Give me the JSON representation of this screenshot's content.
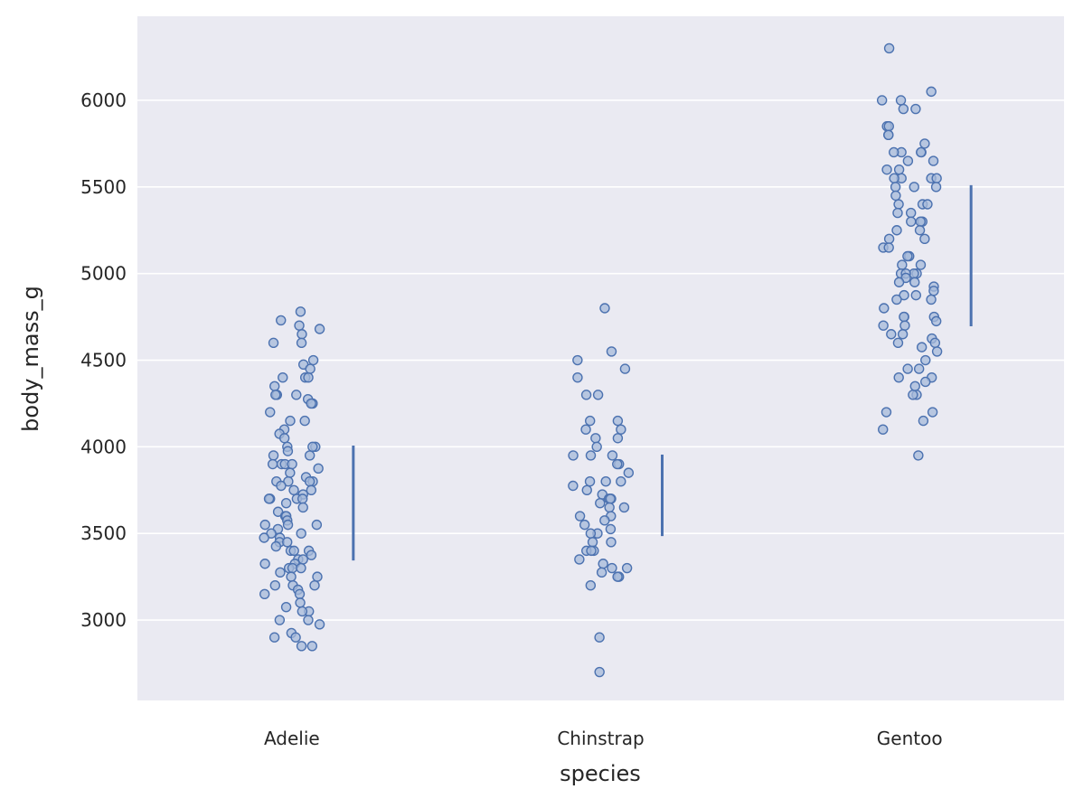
{
  "chart_data": {
    "type": "scatter",
    "subtype": "strip-with-range",
    "xlabel": "species",
    "ylabel": "body_mass_g",
    "categories": [
      "Adelie",
      "Chinstrap",
      "Gentoo"
    ],
    "ylim": [
      2536,
      6485
    ],
    "yticks": [
      3000,
      3500,
      4000,
      4500,
      5000,
      5500,
      6000
    ],
    "grid": true,
    "colors": {
      "background": "#eaeaf2",
      "grid": "#ffffff",
      "point_edge": "#4c72b0",
      "point_fill": "#a6b9d9",
      "range": "#4c72b0"
    },
    "series": [
      {
        "name": "Adelie",
        "values": [
          4780,
          4730,
          4700,
          4680,
          4650,
          4600,
          4600,
          4500,
          4475,
          4450,
          4400,
          4400,
          4400,
          4350,
          4300,
          4300,
          4300,
          4275,
          4250,
          4250,
          4200,
          4150,
          4150,
          4100,
          4075,
          4050,
          4000,
          4000,
          4000,
          3975,
          3950,
          3950,
          3900,
          3900,
          3900,
          3900,
          3875,
          3850,
          3825,
          3800,
          3800,
          3800,
          3800,
          3775,
          3750,
          3750,
          3725,
          3700,
          3700,
          3700,
          3700,
          3675,
          3650,
          3625,
          3600,
          3600,
          3575,
          3550,
          3550,
          3550,
          3525,
          3500,
          3500,
          3475,
          3475,
          3450,
          3450,
          3425,
          3400,
          3400,
          3400,
          3375,
          3350,
          3350,
          3325,
          3325,
          3300,
          3300,
          3300,
          3275,
          3250,
          3250,
          3200,
          3200,
          3200,
          3175,
          3150,
          3150,
          3100,
          3075,
          3050,
          3050,
          3000,
          3000,
          2975,
          2925,
          2900,
          2900,
          2850,
          2850
        ],
        "range": [
          3344,
          4007
        ]
      },
      {
        "name": "Chinstrap",
        "values": [
          4800,
          4550,
          4500,
          4450,
          4400,
          4300,
          4300,
          4150,
          4150,
          4100,
          4100,
          4050,
          4050,
          4000,
          3950,
          3950,
          3950,
          3900,
          3900,
          3850,
          3800,
          3800,
          3800,
          3775,
          3750,
          3725,
          3700,
          3700,
          3700,
          3675,
          3650,
          3650,
          3600,
          3600,
          3575,
          3550,
          3525,
          3500,
          3500,
          3450,
          3450,
          3400,
          3400,
          3400,
          3350,
          3325,
          3300,
          3300,
          3275,
          3250,
          3250,
          3200,
          2900,
          2700
        ],
        "range": [
          3485,
          3955
        ]
      },
      {
        "name": "Gentoo",
        "values": [
          6300,
          6050,
          6000,
          6000,
          5950,
          5950,
          5850,
          5850,
          5800,
          5800,
          5750,
          5700,
          5700,
          5700,
          5700,
          5650,
          5650,
          5600,
          5600,
          5550,
          5550,
          5550,
          5550,
          5500,
          5500,
          5500,
          5450,
          5400,
          5400,
          5400,
          5350,
          5350,
          5300,
          5300,
          5300,
          5250,
          5250,
          5200,
          5200,
          5150,
          5150,
          5100,
          5100,
          5050,
          5050,
          5000,
          5000,
          5000,
          5000,
          4975,
          4950,
          4950,
          4925,
          4900,
          4875,
          4875,
          4850,
          4850,
          4800,
          4750,
          4750,
          4750,
          4725,
          4700,
          4700,
          4650,
          4650,
          4625,
          4600,
          4600,
          4575,
          4550,
          4500,
          4450,
          4450,
          4400,
          4400,
          4375,
          4350,
          4300,
          4300,
          4200,
          4200,
          4150,
          4100,
          3950
        ],
        "range": [
          4696,
          5510
        ]
      }
    ]
  }
}
